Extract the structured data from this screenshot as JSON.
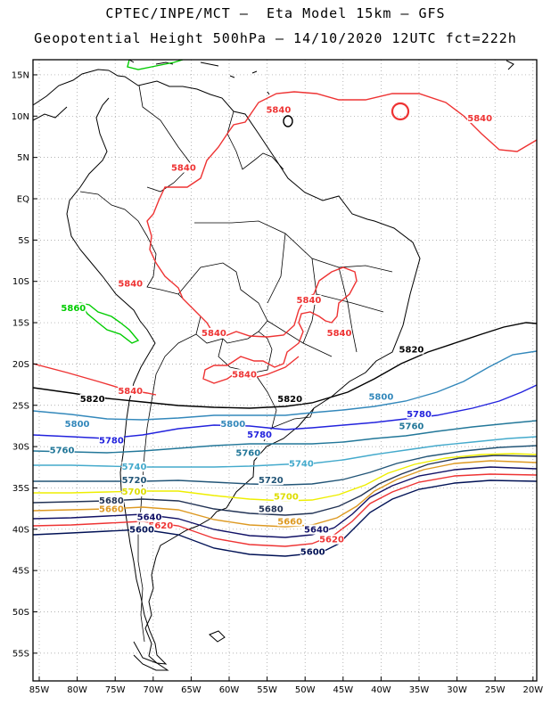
{
  "title": {
    "line1": "CPTEC/INPE/MCT –  Eta Model 15km – GFS",
    "line2": "Geopotential Height 500hPa – 14/10/2020 12UTC fct=222h"
  },
  "lat_labels": [
    "15N",
    "10N",
    "5N",
    "EQ",
    "5S",
    "10S",
    "15S",
    "20S",
    "25S",
    "30S",
    "35S",
    "40S",
    "45S",
    "50S",
    "55S"
  ],
  "lon_labels": [
    "85W",
    "80W",
    "75W",
    "70W",
    "65W",
    "60W",
    "55W",
    "50W",
    "45W",
    "40W",
    "35W",
    "30W",
    "25W",
    "20W"
  ],
  "contour_colors": {
    "5860": "#00cc00",
    "5840": "#ee3333",
    "5820": "#000000",
    "5800": "#3388bb",
    "5780": "#2222dd",
    "5760": "#227799",
    "5740": "#44aacc",
    "5720": "#225577",
    "5700": "#eeee00",
    "5680": "#223355",
    "5660": "#dd9922",
    "5640": "#111166",
    "5620": "#ee3333",
    "5600": "#001155"
  },
  "contour_labels": [
    {
      "text": "5840",
      "color": "#ee3333",
      "lon": -53.5,
      "lat": 10.5
    },
    {
      "text": "5840",
      "color": "#ee3333",
      "lon": -27.0,
      "lat": 9.5
    },
    {
      "text": "5840",
      "color": "#ee3333",
      "lon": -66.0,
      "lat": 3.5
    },
    {
      "text": "5840",
      "color": "#ee3333",
      "lon": -73.0,
      "lat": -10.5
    },
    {
      "text": "5860",
      "color": "#00cc00",
      "lon": -80.5,
      "lat": -13.5
    },
    {
      "text": "5840",
      "color": "#ee3333",
      "lon": -49.5,
      "lat": -12.5
    },
    {
      "text": "5840",
      "color": "#ee3333",
      "lon": -62.0,
      "lat": -16.5
    },
    {
      "text": "5840",
      "color": "#ee3333",
      "lon": -45.5,
      "lat": -16.5
    },
    {
      "text": "5840",
      "color": "#ee3333",
      "lon": -58.0,
      "lat": -21.5
    },
    {
      "text": "5840",
      "color": "#ee3333",
      "lon": -73.0,
      "lat": -23.5
    },
    {
      "text": "5820",
      "color": "#000000",
      "lon": -36.0,
      "lat": -18.5
    },
    {
      "text": "5820",
      "color": "#000000",
      "lon": -78.0,
      "lat": -24.5
    },
    {
      "text": "5820",
      "color": "#000000",
      "lon": -52.0,
      "lat": -24.5
    },
    {
      "text": "5800",
      "color": "#3388bb",
      "lon": -40.0,
      "lat": -24.2
    },
    {
      "text": "5800",
      "color": "#3388bb",
      "lon": -80.0,
      "lat": -27.5
    },
    {
      "text": "5800",
      "color": "#3388bb",
      "lon": -59.5,
      "lat": -27.5
    },
    {
      "text": "5780",
      "color": "#2222dd",
      "lon": -35.0,
      "lat": -26.3
    },
    {
      "text": "5780",
      "color": "#2222dd",
      "lon": -75.5,
      "lat": -29.5
    },
    {
      "text": "5780",
      "color": "#2222dd",
      "lon": -56.0,
      "lat": -28.8
    },
    {
      "text": "5760",
      "color": "#227799",
      "lon": -36.0,
      "lat": -27.8
    },
    {
      "text": "5760",
      "color": "#227799",
      "lon": -82.0,
      "lat": -30.7
    },
    {
      "text": "5760",
      "color": "#227799",
      "lon": -57.5,
      "lat": -31.0
    },
    {
      "text": "5740",
      "color": "#44aacc",
      "lon": -72.5,
      "lat": -32.7
    },
    {
      "text": "5740",
      "color": "#44aacc",
      "lon": -50.5,
      "lat": -32.3
    },
    {
      "text": "5720",
      "color": "#225577",
      "lon": -72.5,
      "lat": -34.3
    },
    {
      "text": "5720",
      "color": "#225577",
      "lon": -54.5,
      "lat": -34.3
    },
    {
      "text": "5700",
      "color": "#dddd00",
      "lon": -72.5,
      "lat": -35.7
    },
    {
      "text": "5700",
      "color": "#dddd00",
      "lon": -52.5,
      "lat": -36.3
    },
    {
      "text": "5680",
      "color": "#223355",
      "lon": -75.5,
      "lat": -36.8
    },
    {
      "text": "5680",
      "color": "#223355",
      "lon": -54.5,
      "lat": -37.8
    },
    {
      "text": "5660",
      "color": "#dd9922",
      "lon": -75.5,
      "lat": -37.8
    },
    {
      "text": "5660",
      "color": "#dd9922",
      "lon": -52.0,
      "lat": -39.3
    },
    {
      "text": "5640",
      "color": "#111166",
      "lon": -70.5,
      "lat": -38.8
    },
    {
      "text": "5640",
      "color": "#111166",
      "lon": -48.5,
      "lat": -40.3
    },
    {
      "text": "5620",
      "color": "#ee3333",
      "lon": -69.0,
      "lat": -39.8
    },
    {
      "text": "5620",
      "color": "#ee3333",
      "lon": -46.5,
      "lat": -41.5
    },
    {
      "text": "5600",
      "color": "#001155",
      "lon": -71.5,
      "lat": -40.3
    },
    {
      "text": "5600",
      "color": "#001155",
      "lon": -49.0,
      "lat": -43.0
    }
  ]
}
